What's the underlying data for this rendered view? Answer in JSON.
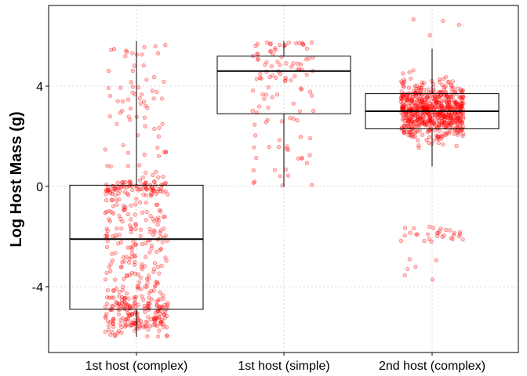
{
  "chart_data": {
    "type": "boxplot",
    "title": "",
    "xlabel": "",
    "ylabel": "Log Host Mass (g)",
    "ylim": [
      -6.6,
      7.3
    ],
    "yticks": [
      -4,
      0,
      4
    ],
    "grid": true,
    "legend": "none",
    "categories": [
      "1st host (complex)",
      "1st host (simple)",
      "2nd host (complex)"
    ],
    "boxes": [
      {
        "category": "1st host (complex)",
        "min": -6.0,
        "q1": -4.9,
        "median": -2.1,
        "q3": 0.05,
        "max": 5.8
      },
      {
        "category": "1st host (simple)",
        "min": 0.0,
        "q1": 2.9,
        "median": 4.6,
        "q3": 5.2,
        "max": 5.8
      },
      {
        "category": "2nd host (complex)",
        "min": 0.8,
        "q1": 2.3,
        "median": 3.0,
        "q3": 3.7,
        "max": 5.5
      }
    ],
    "point_color": "#ff0000",
    "box_color": "#000000",
    "approx_point_counts": [
      500,
      110,
      900
    ]
  }
}
